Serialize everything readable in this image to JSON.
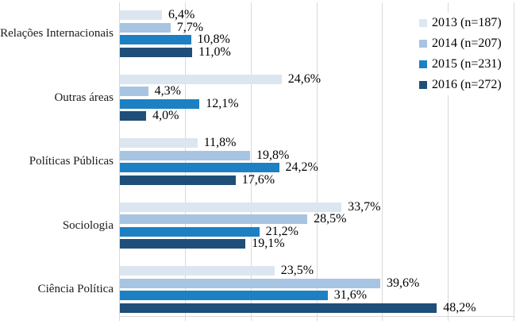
{
  "chart_data": {
    "type": "bar",
    "orientation": "horizontal",
    "title": "",
    "xlabel": "",
    "ylabel": "",
    "xlim": [
      0,
      60
    ],
    "gridline_interval": 10,
    "grid": true,
    "legend_position": "top-right",
    "decimal_style": "comma",
    "categories": [
      "Relações Internacionais",
      "Outras áreas",
      "Políticas Públicas",
      "Sociologia",
      "Ciência Política"
    ],
    "series": [
      {
        "name": "2013 (n=187)",
        "color": "#dce6f0",
        "values": [
          6.4,
          24.6,
          11.8,
          33.7,
          23.5
        ],
        "labels": [
          "6,4%",
          "24,6%",
          "11,8%",
          "33,7%",
          "23,5%"
        ]
      },
      {
        "name": "2014 (n=207)",
        "color": "#a7c4e2",
        "values": [
          7.7,
          4.3,
          19.8,
          28.5,
          39.6
        ],
        "labels": [
          "7,7%",
          "4,3%",
          "19,8%",
          "28,5%",
          "39,6%"
        ]
      },
      {
        "name": "2015 (n=231)",
        "color": "#1c80c3",
        "values": [
          10.8,
          12.1,
          24.2,
          21.2,
          31.6
        ],
        "labels": [
          "10,8%",
          "12,1%",
          "24,2%",
          "21,2%",
          "31,6%"
        ]
      },
      {
        "name": "2016 (n=272)",
        "color": "#1f4e79",
        "values": [
          11.0,
          4.0,
          17.6,
          19.1,
          48.2
        ],
        "labels": [
          "11,0%",
          "4,0%",
          "17,6%",
          "19,1%",
          "48,2%"
        ]
      }
    ],
    "colors": {
      "gridline": "#d9d9d9",
      "axis": "#d9d9d9",
      "text": "#000000",
      "background": "#ffffff"
    }
  }
}
